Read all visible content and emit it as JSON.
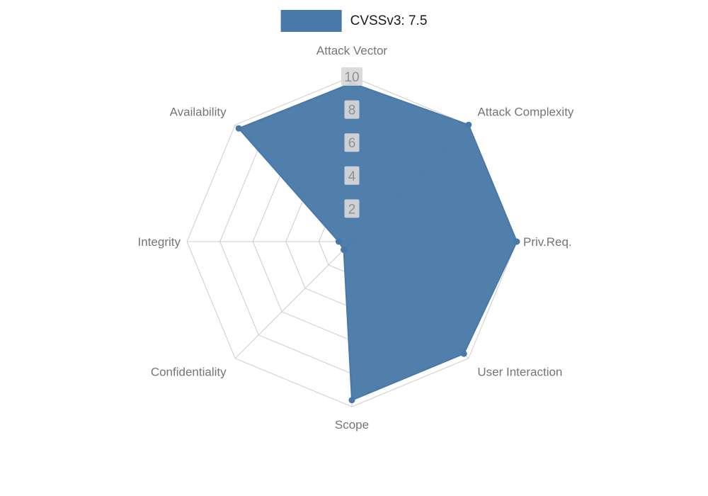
{
  "legend": {
    "label": "CVSSv3: 7.5"
  },
  "chart_data": {
    "type": "radar",
    "title": "CVSSv3: 7.5",
    "categories": [
      "Attack Vector",
      "Attack Complexity",
      "Priv.Req.",
      "User Interaction",
      "Scope",
      "Confidentiality",
      "Integrity",
      "Availability"
    ],
    "series": [
      {
        "name": "CVSSv3: 7.5",
        "values": [
          9.6,
          10,
          10,
          9.6,
          9.6,
          0.7,
          0.8,
          9.7
        ],
        "color": "#4878a8"
      }
    ],
    "radial_ticks": [
      2,
      4,
      6,
      8,
      10
    ],
    "r_max": 10,
    "grid": true,
    "grid_shape": "polygon",
    "start_axis": "top",
    "direction": "clockwise",
    "legend_position": "top-center",
    "colors": {
      "grid": "#cccccc",
      "axis_label": "#757575",
      "tick_label": "#8f8f8f",
      "tick_bg": "#d8d8d8",
      "legend_text": "#1a1a1a",
      "fill_opacity": 0.95
    }
  }
}
